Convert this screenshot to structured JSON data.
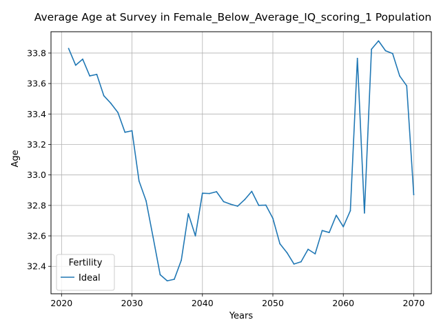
{
  "chart_data": {
    "type": "line",
    "title": "Average Age at Survey in Female_Below_Average_IQ_scoring_1 Population",
    "xlabel": "Years",
    "ylabel": "Age",
    "xlim": [
      2018.5,
      2072.5
    ],
    "ylim": [
      32.22,
      33.94
    ],
    "xticks": [
      2020,
      2030,
      2040,
      2050,
      2060,
      2070
    ],
    "yticks": [
      32.4,
      32.6,
      32.8,
      33.0,
      33.2,
      33.4,
      33.6,
      33.8
    ],
    "grid": true,
    "legend": {
      "title": "Fertility",
      "placement": "lower-left"
    },
    "series": [
      {
        "name": "Ideal",
        "color": "#1f77b4",
        "x": [
          2021,
          2022,
          2023,
          2024,
          2025,
          2026,
          2027,
          2028,
          2029,
          2030,
          2031,
          2032,
          2033,
          2034,
          2035,
          2036,
          2037,
          2038,
          2039,
          2040,
          2041,
          2042,
          2043,
          2044,
          2045,
          2046,
          2047,
          2048,
          2049,
          2050,
          2051,
          2052,
          2053,
          2054,
          2055,
          2056,
          2057,
          2058,
          2059,
          2060,
          2061,
          2062,
          2063,
          2064,
          2065,
          2066,
          2067,
          2068,
          2069,
          2070
        ],
        "values": [
          33.83,
          33.72,
          33.76,
          33.65,
          33.66,
          33.52,
          33.47,
          33.41,
          33.28,
          33.29,
          32.96,
          32.83,
          32.59,
          32.345,
          32.305,
          32.315,
          32.44,
          32.745,
          32.6,
          32.88,
          32.878,
          32.89,
          32.825,
          32.808,
          32.795,
          32.838,
          32.892,
          32.8,
          32.802,
          32.715,
          32.548,
          32.49,
          32.415,
          32.43,
          32.512,
          32.482,
          32.635,
          32.622,
          32.735,
          32.66,
          32.765,
          33.765,
          32.75,
          33.825,
          33.88,
          33.815,
          33.797,
          33.65,
          33.585,
          32.87
        ]
      }
    ]
  }
}
